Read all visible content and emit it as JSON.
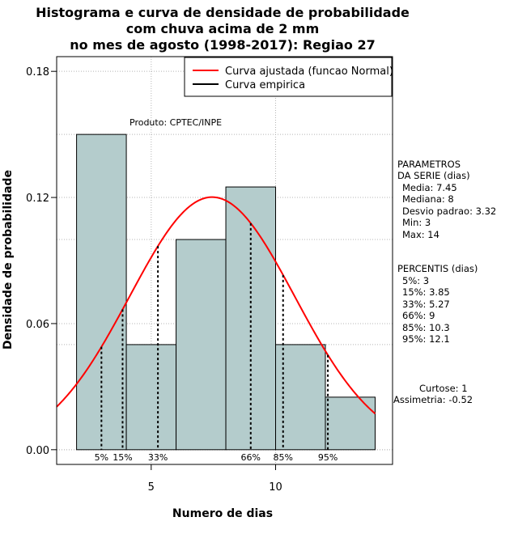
{
  "chart_data": {
    "type": "bar",
    "title": [
      "Histograma e curva de densidade de probabilidade",
      "com chuva acima de 2 mm",
      "no mes de agosto (1998-2017): Regiao 27"
    ],
    "xlabel": "Numero de dias",
    "ylabel": "Densidade de probabilidade",
    "xlim": [
      1.2,
      14.7
    ],
    "ylim": [
      -0.007,
      0.187
    ],
    "x_ticks": [
      5,
      10
    ],
    "y_ticks": [
      0.0,
      0.06,
      0.12,
      0.18
    ],
    "y_tick_labels": [
      "0.00",
      "0.06",
      "0.12",
      "0.18"
    ],
    "bins": [
      {
        "start": 2,
        "end": 4,
        "density": 0.15
      },
      {
        "start": 4,
        "end": 6,
        "density": 0.05
      },
      {
        "start": 6,
        "end": 8,
        "density": 0.1
      },
      {
        "start": 8,
        "end": 10,
        "density": 0.125
      },
      {
        "start": 10,
        "end": 12,
        "density": 0.05
      },
      {
        "start": 12,
        "end": 14,
        "density": 0.025
      }
    ],
    "normal_curve": {
      "mean": 7.45,
      "sd": 3.32,
      "x_from": 1.2,
      "x_to": 14
    },
    "percentile_lines": [
      {
        "label": "5%",
        "x": 3
      },
      {
        "label": "15%",
        "x": 3.85
      },
      {
        "label": "33%",
        "x": 5.27
      },
      {
        "label": "66%",
        "x": 9
      },
      {
        "label": "85%",
        "x": 10.3
      },
      {
        "label": "95%",
        "x": 12.1
      }
    ],
    "legend": {
      "position": "top-right",
      "items": [
        {
          "label": "Curva ajustada (funcao Normal)",
          "color": "#ff0000"
        },
        {
          "label": "Curva empirica",
          "color": "#000000"
        }
      ]
    },
    "product_note": "Produto: CPTEC/INPE",
    "parameters": {
      "heading": [
        "PARAMETROS",
        "DA SERIE (dias)"
      ],
      "lines": [
        "Media: 7.45",
        "Mediana: 8",
        "Desvio padrao: 3.32",
        "Min: 3",
        "Max: 14"
      ]
    },
    "percentiles": {
      "heading": "PERCENTIS (dias)",
      "lines": [
        "5%: 3",
        "15%: 3.85",
        "33%: 5.27",
        "66%: 9",
        "85%: 10.3",
        "95%: 12.1"
      ]
    },
    "shape": {
      "lines": [
        "Curtose: 1",
        "Assimetria: -0.52"
      ]
    },
    "colors": {
      "bar_fill": "#b4cccc",
      "curve": "#ff0000",
      "grid": "#b4b4b4"
    }
  }
}
